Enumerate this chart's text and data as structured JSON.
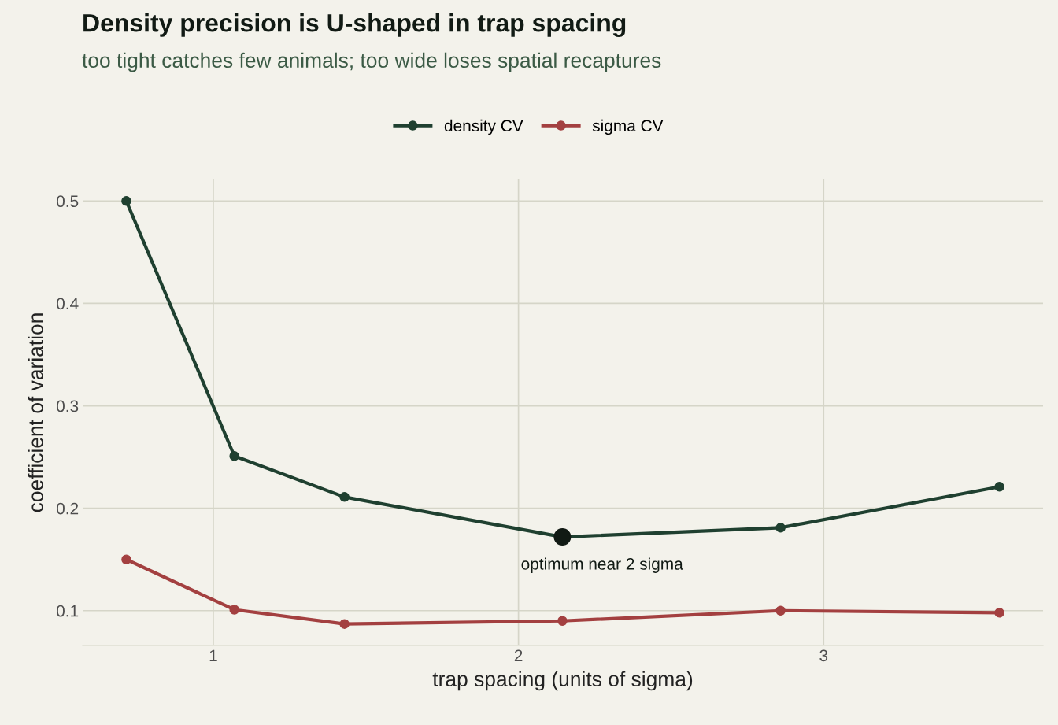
{
  "chart_data": {
    "type": "line",
    "title": "Density precision is U-shaped in trap spacing",
    "subtitle": "too tight catches few animals; too wide loses spatial recaptures",
    "xlabel": "trap spacing (units of sigma)",
    "ylabel": "coefficient of variation",
    "series": [
      {
        "name": "density CV",
        "color": "#1f4030",
        "x": [
          0.715,
          1.069,
          1.43,
          2.144,
          2.859,
          3.576
        ],
        "values": [
          0.5,
          0.251,
          0.211,
          0.172,
          0.181,
          0.221
        ]
      },
      {
        "name": "sigma CV",
        "color": "#a34040",
        "x": [
          0.715,
          1.069,
          1.43,
          2.144,
          2.859,
          3.576
        ],
        "values": [
          0.15,
          0.101,
          0.087,
          0.09,
          0.1,
          0.098
        ]
      },
      {
        "type": "scatter",
        "color": "#111a14",
        "x": [
          2.144
        ],
        "values": [
          0.172
        ]
      }
    ],
    "annotations": [
      {
        "text": "optimum near 2 sigma",
        "x": 2.144,
        "y": 0.172
      }
    ],
    "xlim": [
      0.572,
      3.719
    ],
    "ylim": [
      0.066,
      0.521
    ],
    "xticks": [
      1,
      2,
      3
    ],
    "yticks": [
      0.1,
      0.2,
      0.3,
      0.4,
      0.5
    ],
    "grid": true,
    "legend": "top",
    "marker": "circle",
    "line_style": "solid"
  }
}
